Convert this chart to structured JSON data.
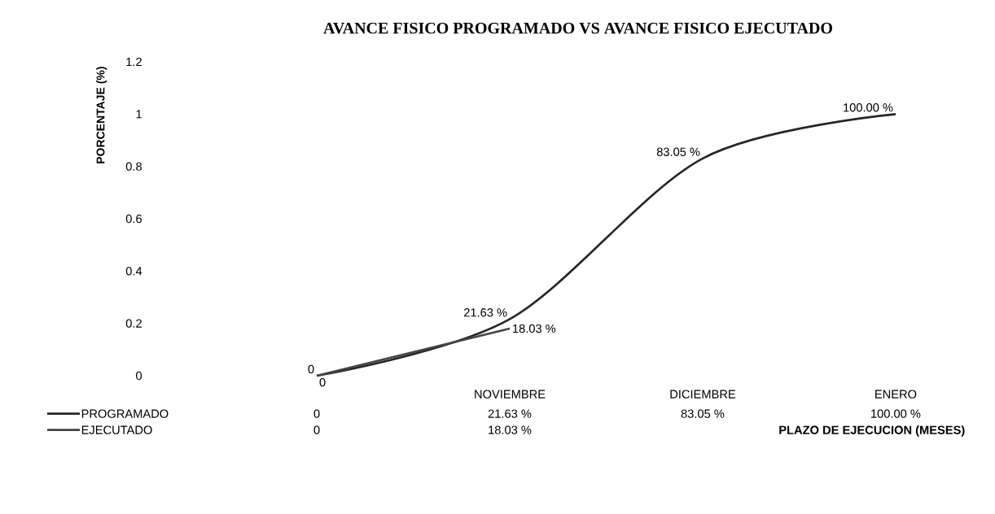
{
  "chart_data": {
    "type": "line",
    "title": "AVANCE FISICO PROGRAMADO VS AVANCE FISICO EJECUTADO",
    "ylabel": "PORCENTAJE (%)",
    "xlabel": "PLAZO DE EJECUCION (MESES)",
    "categories": [
      null,
      "NOVIEMBRE",
      "DICIEMBRE",
      "ENERO"
    ],
    "series": [
      {
        "name": "PROGRAMADO",
        "color": "#262626",
        "values": [
          0,
          0.2163,
          0.8305,
          1.0
        ],
        "value_labels": [
          "0",
          "21.63 %",
          "83.05 %",
          "100.00 %"
        ]
      },
      {
        "name": "EJECUTADO",
        "color": "#454545",
        "values": [
          0,
          0.1803,
          null,
          null
        ],
        "value_labels": [
          "0",
          "18.03 %",
          null,
          null
        ]
      }
    ],
    "ylim": [
      0,
      1.2
    ],
    "yticks": [
      0,
      0.2,
      0.4,
      0.6,
      0.8,
      1,
      1.2
    ],
    "grid": false,
    "legend": "bottom left",
    "marker": "none",
    "line_style": "solid"
  }
}
